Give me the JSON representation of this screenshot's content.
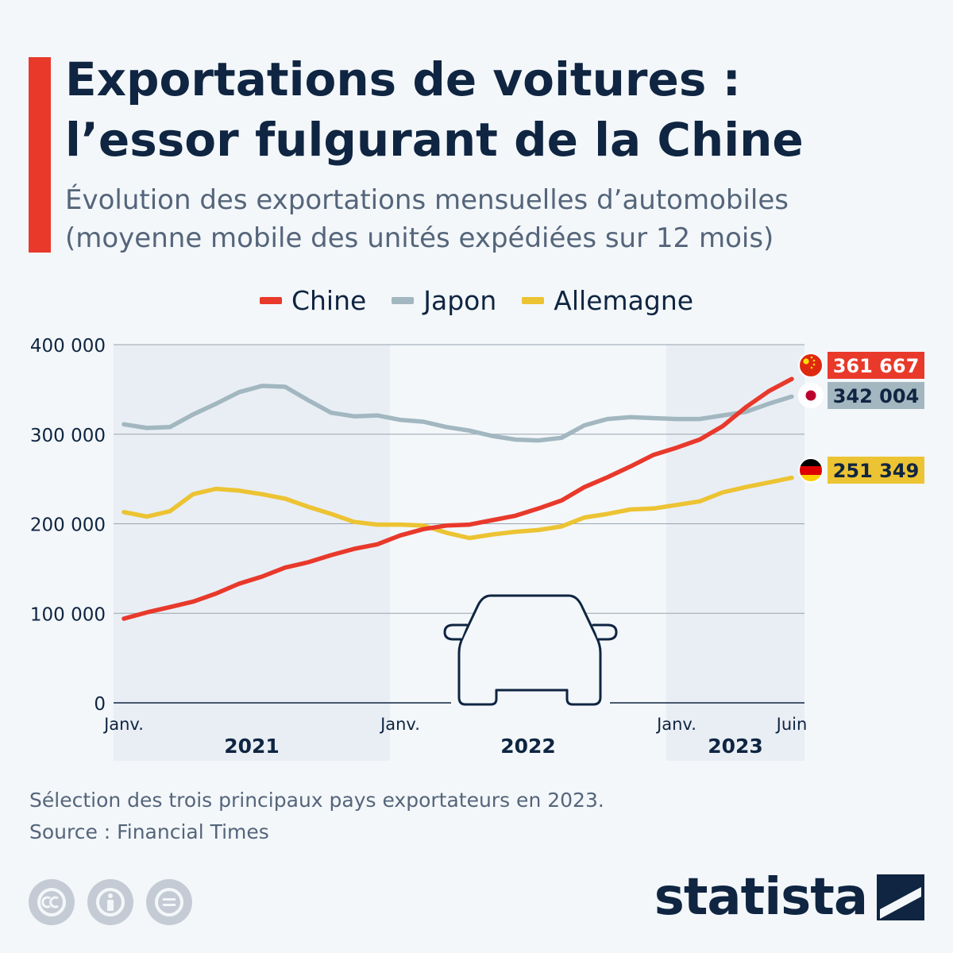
{
  "header": {
    "title_line1": "Exportations de voitures :",
    "title_line2": "l’essor fulgurant de la Chine",
    "subtitle_line1": "Évolution des exportations mensuelles d’automobiles",
    "subtitle_line2": "(moyenne mobile des unités expédiées sur 12 mois)"
  },
  "colors": {
    "accent": "#e8392b",
    "china": "#e8392b",
    "japan": "#a2b7c0",
    "germany": "#ecc333",
    "navy": "#0f2541",
    "band": "#e9eef5"
  },
  "chart_data": {
    "type": "line",
    "legend_placement": "top-center",
    "grid": true,
    "ylim": [
      0,
      400000
    ],
    "y_ticks": [
      0,
      100000,
      200000,
      300000,
      400000
    ],
    "y_tick_labels": [
      "0",
      "100 000",
      "200 000",
      "300 000",
      "400 000"
    ],
    "x_tick_labels": [
      "Janv.",
      "Janv.",
      "Janv.",
      "Juin"
    ],
    "x_year_labels": [
      "2021",
      "2022",
      "2023"
    ],
    "x": [
      "2021-01",
      "2021-02",
      "2021-03",
      "2021-04",
      "2021-05",
      "2021-06",
      "2021-07",
      "2021-08",
      "2021-09",
      "2021-10",
      "2021-11",
      "2021-12",
      "2022-01",
      "2022-02",
      "2022-03",
      "2022-04",
      "2022-05",
      "2022-06",
      "2022-07",
      "2022-08",
      "2022-09",
      "2022-10",
      "2022-11",
      "2022-12",
      "2023-01",
      "2023-02",
      "2023-03",
      "2023-04",
      "2023-05",
      "2023-06"
    ],
    "series": [
      {
        "name": "Chine",
        "color": "#e8392b",
        "end_label": "361 667",
        "flag": "china-flag-icon",
        "values": [
          94000,
          101000,
          107000,
          113000,
          122000,
          133000,
          141000,
          151000,
          157000,
          165000,
          172000,
          177000,
          187000,
          194000,
          198000,
          199000,
          204000,
          209000,
          217000,
          226000,
          241000,
          252000,
          264000,
          277000,
          285000,
          294000,
          309000,
          330000,
          348000,
          361667
        ]
      },
      {
        "name": "Japon",
        "color": "#a2b7c0",
        "end_label": "342 004",
        "flag": "japan-flag-icon",
        "values": [
          311000,
          307000,
          308000,
          322000,
          334000,
          347000,
          354000,
          353000,
          338000,
          324000,
          320000,
          321000,
          316000,
          314000,
          308000,
          304000,
          298000,
          294000,
          293000,
          296000,
          310000,
          317000,
          319000,
          318000,
          317000,
          317000,
          321000,
          325000,
          334000,
          342004
        ]
      },
      {
        "name": "Allemagne",
        "color": "#ecc333",
        "end_label": "251 349",
        "flag": "germany-flag-icon",
        "values": [
          213000,
          208000,
          214000,
          233000,
          239000,
          237000,
          233000,
          228000,
          219000,
          211000,
          202000,
          199000,
          199000,
          198000,
          190000,
          184000,
          188000,
          191000,
          193000,
          197000,
          207000,
          211000,
          216000,
          217000,
          221000,
          225000,
          235000,
          241000,
          246000,
          251349
        ]
      }
    ]
  },
  "footer": {
    "note": "Sélection des trois principaux pays exportateurs en 2023.",
    "source": "Source : Financial Times",
    "brand": "statista"
  }
}
